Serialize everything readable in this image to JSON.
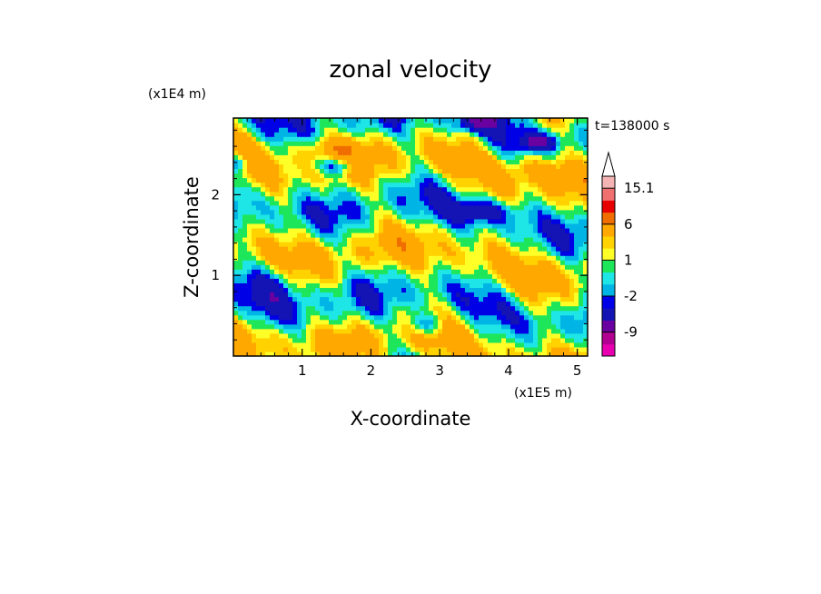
{
  "chart_data": {
    "type": "heatmap",
    "title": "zonal velocity",
    "xlabel": "X-coordinate",
    "ylabel": "Z-coordinate",
    "x_scale_label": "(x1E5 m)",
    "y_scale_label": "(x1E4 m)",
    "time_label": "t=138000 s",
    "xlim": [
      0,
      5.15
    ],
    "ylim": [
      0,
      2.95
    ],
    "x_ticks": [
      1,
      2,
      3,
      4,
      5
    ],
    "x_tick_labels": [
      "1",
      "2",
      "3",
      "4",
      "5"
    ],
    "y_ticks": [
      1,
      2
    ],
    "y_tick_labels": [
      "1",
      "2"
    ],
    "colorbar": {
      "levels": [
        -15,
        -12,
        -9,
        -6,
        -3,
        -2,
        -1,
        0,
        1,
        2,
        3,
        6,
        9,
        12,
        15.1
      ],
      "labels": [
        {
          "value": 15.1,
          "text": "15.1"
        },
        {
          "value": 6,
          "text": "6"
        },
        {
          "value": 1,
          "text": "1"
        },
        {
          "value": -2,
          "text": "-2"
        },
        {
          "value": -9,
          "text": "-9"
        }
      ],
      "colors": [
        "#e800b0",
        "#b20090",
        "#6a00a0",
        "#1414b4",
        "#0000e6",
        "#00b4e6",
        "#1ee6e6",
        "#1ee65a",
        "#ffff28",
        "#ffd200",
        "#ffa800",
        "#f06e00",
        "#e60000",
        "#f07070",
        "#f5b4b4"
      ],
      "extend_top": true
    },
    "field_description": "zonal velocity field with layered bands; dominant values near 0 to 3 with negative jets near top and positive jets in upper layers"
  }
}
